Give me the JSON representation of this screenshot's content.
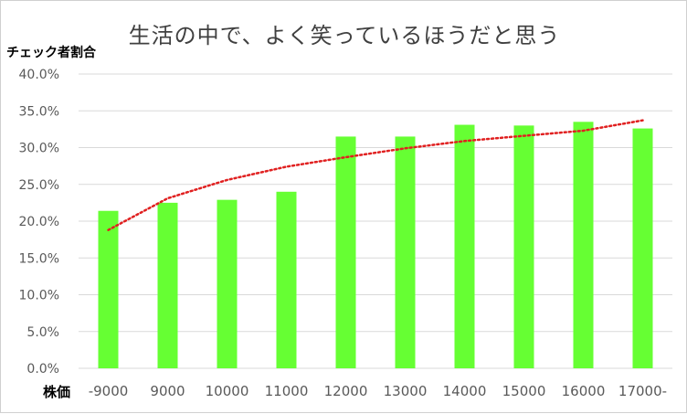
{
  "chart_data": {
    "type": "bar",
    "title": "生活の中で、よく笑っているほうだと思う",
    "ylabel": "チェック者割合",
    "xlabel": "株価",
    "categories": [
      "-9000",
      "9000",
      "10000",
      "11000",
      "12000",
      "13000",
      "14000",
      "15000",
      "16000",
      "17000-"
    ],
    "series": [
      {
        "values": [
          21.4,
          22.5,
          22.9,
          24.0,
          31.5,
          31.5,
          33.1,
          33.0,
          33.5,
          32.6
        ]
      }
    ],
    "trendline": {
      "type": "logarithmic",
      "values": [
        18.8,
        23.1,
        25.6,
        27.4,
        28.7,
        29.9,
        30.9,
        31.6,
        32.3,
        33.7
      ]
    },
    "ylim": [
      0,
      40
    ],
    "yticks": [
      "0.0%",
      "5.0%",
      "10.0%",
      "15.0%",
      "20.0%",
      "25.0%",
      "30.0%",
      "35.0%",
      "40.0%"
    ],
    "grid": true,
    "legend": "none",
    "colors": {
      "bar": "#66ff33",
      "trendline": "#e02020",
      "grid": "#d9d9d9",
      "axis_text": "#595959"
    }
  }
}
